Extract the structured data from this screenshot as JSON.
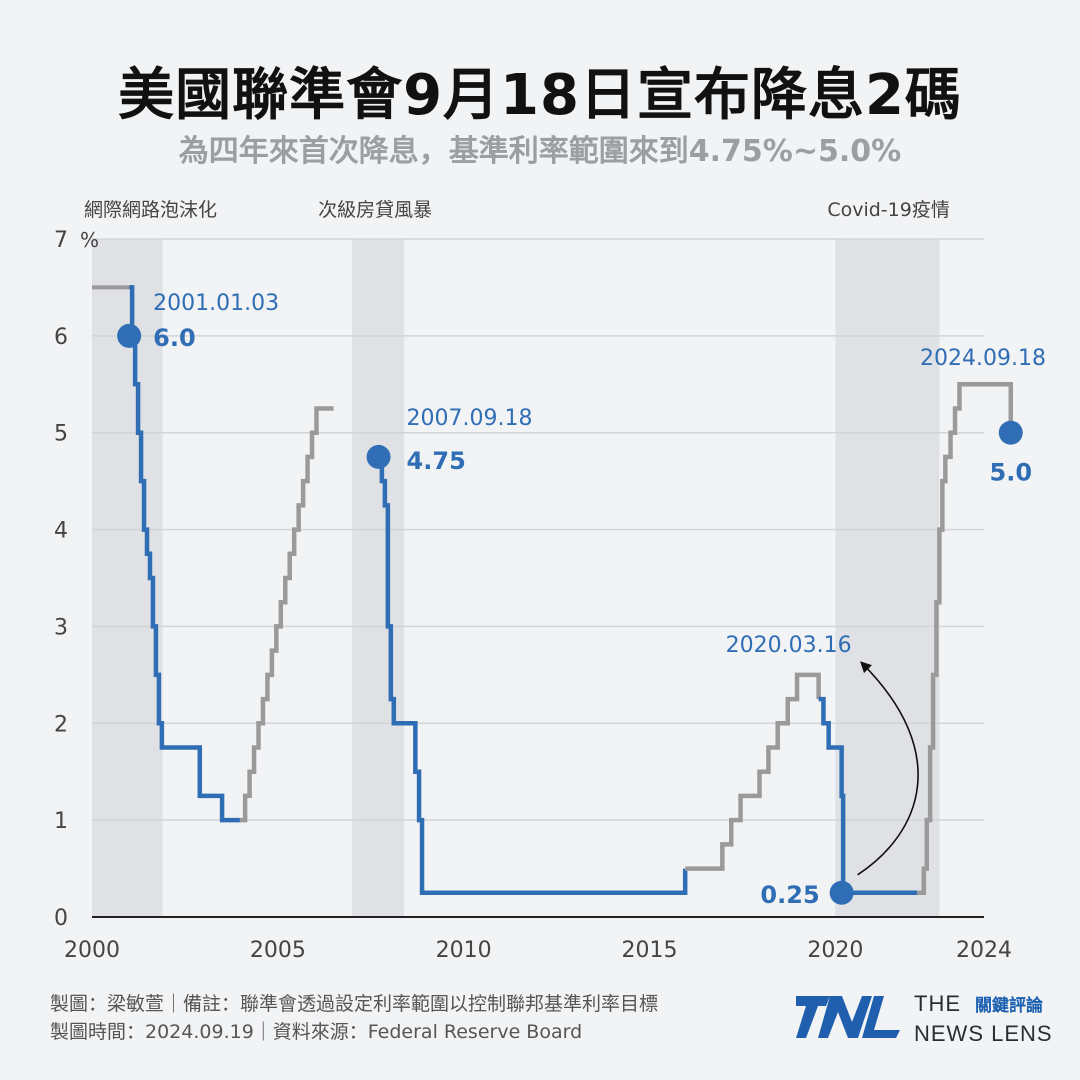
{
  "title": "美國聯準會9月18日宣布降息2碼",
  "subtitle": "為四年來首次降息，基準利率範圍來到4.75%~5.0%",
  "colors": {
    "cut": "#2f6eb5",
    "hike": "#9a9a9a",
    "recession_shade": "#dfe1e5",
    "background": "#f2f3f5"
  },
  "chart_data": {
    "type": "line",
    "ylabel_unit": "%",
    "ylim": [
      0,
      7
    ],
    "xlim": [
      2000,
      2024
    ],
    "x_ticks": [
      "2000",
      "2005",
      "2010",
      "2015",
      "2020",
      "2024"
    ],
    "y_ticks": [
      "0",
      "1",
      "2",
      "3",
      "4",
      "5",
      "6",
      "7"
    ],
    "grid": true,
    "shaded_periods": [
      {
        "label": "網際網路泡沫化",
        "start": 2000.0,
        "end": 2001.9
      },
      {
        "label": "次級房貸風暴",
        "start": 2007.0,
        "end": 2008.4
      },
      {
        "label": "Covid-19疫情",
        "start": 2020.0,
        "end": 2022.8
      }
    ],
    "series": [
      {
        "color_role": "rate",
        "x": [
          2000.0,
          2001.0,
          2001.08,
          2001.16,
          2001.24,
          2001.32,
          2001.4,
          2001.48,
          2001.56,
          2001.64,
          2001.72,
          2001.8,
          2001.88,
          2001.96,
          2002.9,
          2003.5,
          2003.98,
          2004.12,
          2004.24,
          2004.36,
          2004.48,
          2004.6,
          2004.72,
          2004.84,
          2004.96,
          2005.08,
          2005.2,
          2005.32,
          2005.44,
          2005.56,
          2005.68,
          2005.8,
          2005.92,
          2006.04,
          2006.16,
          2006.28,
          2006.4,
          2006.5,
          2007.71,
          2007.8,
          2007.88,
          2007.96,
          2008.04,
          2008.12,
          2008.2,
          2008.7,
          2008.8,
          2008.88,
          2008.96,
          2015.96,
          2016.96,
          2017.2,
          2017.45,
          2017.96,
          2018.2,
          2018.45,
          2018.72,
          2018.97,
          2019.55,
          2019.68,
          2019.82,
          2020.17,
          2020.21,
          2022.2,
          2022.38,
          2022.46,
          2022.55,
          2022.63,
          2022.72,
          2022.8,
          2022.88,
          2022.96,
          2023.1,
          2023.22,
          2023.34,
          2023.58,
          2024.72
        ],
        "values": [
          6.5,
          6.5,
          6.0,
          5.5,
          5.0,
          4.5,
          4.0,
          3.75,
          3.5,
          3.0,
          2.5,
          2.0,
          1.75,
          1.75,
          1.25,
          1.0,
          1.0,
          1.25,
          1.5,
          1.75,
          2.0,
          2.25,
          2.5,
          2.75,
          3.0,
          3.25,
          3.5,
          3.75,
          4.0,
          4.25,
          4.5,
          4.75,
          5.0,
          5.25,
          5.25,
          5.25,
          5.25,
          5.25,
          4.75,
          4.5,
          4.25,
          3.0,
          2.25,
          2.0,
          2.0,
          1.5,
          1.0,
          0.25,
          0.25,
          0.5,
          0.75,
          1.0,
          1.25,
          1.5,
          1.75,
          2.0,
          2.25,
          2.5,
          2.25,
          2.0,
          1.75,
          1.25,
          0.25,
          0.25,
          0.5,
          1.0,
          1.75,
          2.5,
          3.25,
          4.0,
          4.5,
          4.75,
          5.0,
          5.25,
          5.5,
          5.5,
          5.0
        ]
      }
    ],
    "segments": [
      {
        "kind": "cut",
        "from": 2001.0,
        "to": 2003.98
      },
      {
        "kind": "hike",
        "from": 2003.98,
        "to": 2006.5
      },
      {
        "kind": "cut",
        "from": 2007.71,
        "to": 2015.96
      },
      {
        "kind": "hike",
        "from": 2015.96,
        "to": 2019.55
      },
      {
        "kind": "cut",
        "from": 2019.55,
        "to": 2022.2
      },
      {
        "kind": "hike",
        "from": 2022.2,
        "to": 2024.72
      }
    ],
    "annotations": [
      {
        "date": "2001.01.03",
        "value_label": "6.0",
        "x": 2001.0,
        "y": 6.0
      },
      {
        "date": "2007.09.18",
        "value_label": "4.75",
        "x": 2007.71,
        "y": 4.75
      },
      {
        "date": "2020.03.16",
        "value_label": "0.25",
        "x": 2020.17,
        "y": 0.25
      },
      {
        "date": "2024.09.18",
        "value_label": "5.0",
        "x": 2024.72,
        "y": 5.0
      }
    ]
  },
  "footer": {
    "line1": "製圖：梁敏萱｜備註：聯準會透過設定利率範圍以控制聯邦基準利率目標",
    "line2": "製圖時間：2024.09.19｜資料來源：Federal Reserve Board"
  },
  "logo": {
    "mark": "TNL",
    "line1": "THE",
    "line1_zh": "關鍵評論",
    "line2": "NEWS LENS"
  }
}
